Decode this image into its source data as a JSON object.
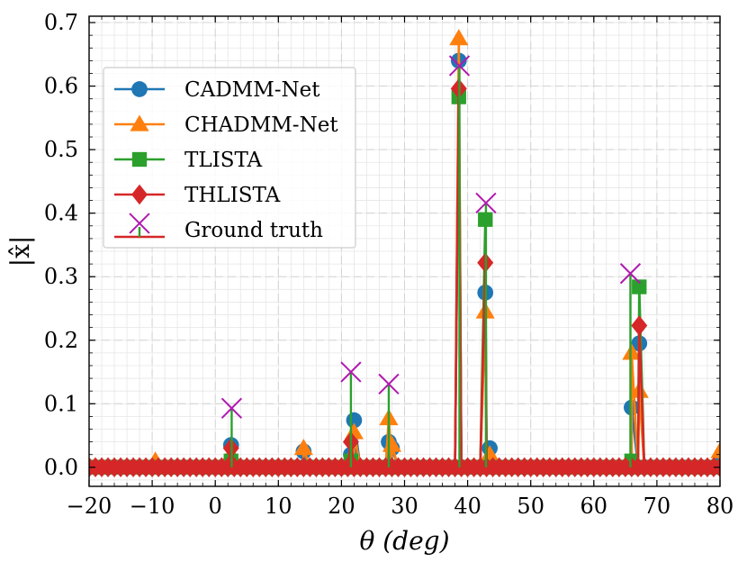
{
  "chart_data": {
    "type": "line",
    "title": "",
    "xlabel": "θ (deg)",
    "ylabel": "|x̂|",
    "xlim": [
      -20,
      80
    ],
    "ylim": [
      -0.03,
      0.71
    ],
    "xticks": [
      -20,
      -10,
      0,
      10,
      20,
      30,
      40,
      50,
      60,
      70,
      80
    ],
    "xtick_labels": [
      "−20",
      "−10",
      "0",
      "10",
      "20",
      "30",
      "40",
      "50",
      "60",
      "70",
      "80"
    ],
    "yticks": [
      0.0,
      0.1,
      0.2,
      0.3,
      0.4,
      0.5,
      0.6,
      0.7
    ],
    "ytick_labels": [
      "0.0",
      "0.1",
      "0.2",
      "0.3",
      "0.4",
      "0.5",
      "0.6",
      "0.7"
    ],
    "grid": true,
    "legend_position": "upper-left",
    "grid_x": [
      -20,
      -19,
      -18,
      -17,
      -16,
      -15,
      -14,
      -13,
      -12,
      -11,
      -10,
      -9,
      -8,
      -7,
      -6,
      -5,
      -4,
      -3,
      -2,
      -1,
      0,
      1,
      2,
      3,
      4,
      5,
      6,
      7,
      8,
      9,
      10,
      11,
      12,
      13,
      14,
      15,
      16,
      17,
      18,
      19,
      20,
      21,
      22,
      23,
      24,
      25,
      26,
      27,
      28,
      29,
      30,
      31,
      32,
      33,
      34,
      35,
      36,
      37,
      38,
      39,
      40,
      41,
      42,
      43,
      44,
      45,
      46,
      47,
      48,
      49,
      50,
      51,
      52,
      53,
      54,
      55,
      56,
      57,
      58,
      59,
      60,
      61,
      62,
      63,
      64,
      65,
      66,
      67,
      68,
      69,
      70,
      71,
      72,
      73,
      74,
      75,
      76,
      77,
      78,
      79,
      80
    ],
    "series": [
      {
        "name": "CADMM-Net",
        "color": "#1f77b4",
        "marker": "circle",
        "peaks": [
          [
            2.5,
            0.035
          ],
          [
            14,
            0.025
          ],
          [
            21.5,
            0.02
          ],
          [
            22,
            0.074
          ],
          [
            27.5,
            0.04
          ],
          [
            28,
            0.03
          ],
          [
            38.6,
            0.64
          ],
          [
            42.8,
            0.275
          ],
          [
            43.5,
            0.03
          ],
          [
            66,
            0.094
          ],
          [
            67.2,
            0.195
          ],
          [
            80,
            0.005
          ]
        ]
      },
      {
        "name": "CHADMM-Net",
        "color": "#ff7f0e",
        "marker": "triangle",
        "peaks": [
          [
            -9.5,
            0.01
          ],
          [
            2.5,
            0.02
          ],
          [
            14,
            0.03
          ],
          [
            21.5,
            0.015
          ],
          [
            22,
            0.055
          ],
          [
            27.5,
            0.077
          ],
          [
            28,
            0.035
          ],
          [
            38.6,
            0.675
          ],
          [
            42.8,
            0.245
          ],
          [
            43.5,
            0.02
          ],
          [
            66,
            0.18
          ],
          [
            67.2,
            0.12
          ],
          [
            80,
            0.025
          ]
        ]
      },
      {
        "name": "TLISTA",
        "color": "#2ca02c",
        "marker": "square",
        "peaks": [
          [
            2.5,
            0.01
          ],
          [
            21.5,
            0.01
          ],
          [
            38.6,
            0.583
          ],
          [
            42.8,
            0.39
          ],
          [
            66,
            0.01
          ],
          [
            67.2,
            0.284
          ]
        ]
      },
      {
        "name": "THLISTA",
        "color": "#d62728",
        "marker": "diamond",
        "peaks": [
          [
            2.5,
            0.03
          ],
          [
            21.5,
            0.04
          ],
          [
            38.6,
            0.596
          ],
          [
            42.8,
            0.322
          ],
          [
            67.2,
            0.223
          ]
        ]
      }
    ],
    "ground_truth": {
      "name": "Ground truth",
      "marker_color": "#b019b0",
      "stem_color": "#2ca02c",
      "baseline_color": "#d62728",
      "x": [
        2.6,
        21.5,
        27.5,
        38.7,
        42.9,
        65.8
      ],
      "y": [
        0.093,
        0.15,
        0.131,
        0.632,
        0.416,
        0.305
      ]
    }
  }
}
